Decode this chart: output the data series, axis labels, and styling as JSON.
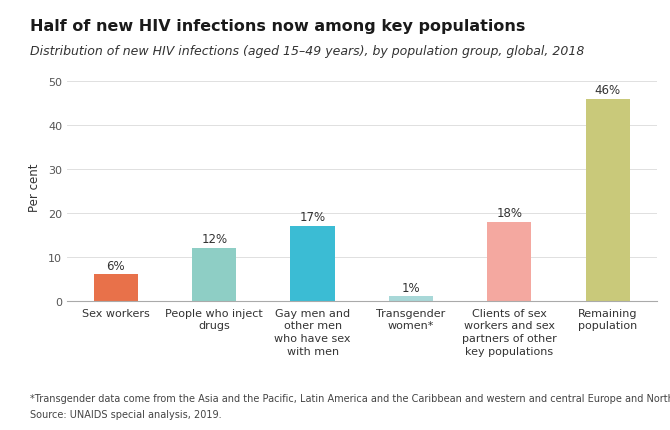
{
  "title": "Half of new HIV infections now among key populations",
  "subtitle": "Distribution of new HIV infections (aged 15–49 years), by population group, global, 2018",
  "categories": [
    "Sex workers",
    "People who inject\ndrugs",
    "Gay men and\nother men\nwho have sex\nwith men",
    "Transgender\nwomen*",
    "Clients of sex\nworkers and sex\npartners of other\nkey populations",
    "Remaining\npopulation"
  ],
  "values": [
    6,
    12,
    17,
    1,
    18,
    46
  ],
  "bar_colors": [
    "#E8714A",
    "#8ECEC5",
    "#3BBCD4",
    "#A8D8D8",
    "#F4A8A0",
    "#C9C97A"
  ],
  "value_labels": [
    "6%",
    "12%",
    "17%",
    "1%",
    "18%",
    "46%"
  ],
  "ylabel": "Per cent",
  "ylim": [
    0,
    52
  ],
  "yticks": [
    0,
    10,
    20,
    30,
    40,
    50
  ],
  "footnote1": "*Transgender data come from the Asia and the Pacific, Latin America and the Caribbean and western and central Europe and North America regions.",
  "footnote2": "Source: UNAIDS special analysis, 2019.",
  "bg_color": "#FFFFFF",
  "title_fontsize": 11.5,
  "subtitle_fontsize": 9,
  "bar_label_fontsize": 8.5,
  "axis_label_fontsize": 8.5,
  "tick_fontsize": 8,
  "footnote_fontsize": 7
}
